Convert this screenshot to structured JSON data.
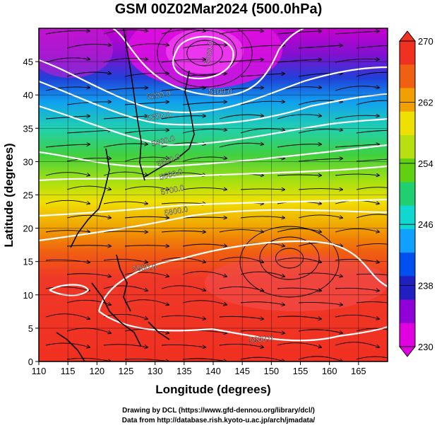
{
  "title": "GSM 00Z02Mar2024 (500.0hPa)",
  "x_axis": {
    "label": "Longitude (degrees)",
    "ticks": [
      "110",
      "115",
      "120",
      "125",
      "130",
      "135",
      "140",
      "145",
      "150",
      "155",
      "160",
      "165"
    ],
    "range": [
      110,
      170
    ]
  },
  "y_axis": {
    "label": "Latitude (degrees)",
    "ticks": [
      "0",
      "5",
      "10",
      "15",
      "20",
      "25",
      "30",
      "35",
      "40",
      "45"
    ],
    "range": [
      0,
      50
    ]
  },
  "colorbar": {
    "ticks": [
      "230",
      "238",
      "246",
      "254",
      "262",
      "270"
    ],
    "range": [
      230,
      270
    ],
    "colors": [
      "#e000e0",
      "#9000d8",
      "#2020c0",
      "#0050f0",
      "#10a0ff",
      "#10d8d0",
      "#20d070",
      "#60d010",
      "#b8e010",
      "#f0e000",
      "#f0a000",
      "#f06010",
      "#f03020"
    ]
  },
  "contours": [
    {
      "label": "5000.0"
    },
    {
      "label": "5100.0"
    },
    {
      "label": "5200.0"
    },
    {
      "label": "5300.0"
    },
    {
      "label": "5400.0"
    },
    {
      "label": "5500.0"
    },
    {
      "label": "5600.0"
    },
    {
      "label": "5700.0"
    },
    {
      "label": "5800.0"
    },
    {
      "label": "5900.0"
    },
    {
      "label": "5900.0"
    }
  ],
  "credits": {
    "line1": "Drawing by DCL (https://www.gfd-dennou.org/library/dcl/)",
    "line2": "Data from http://database.rish.kyoto-u.ac.jp/arch/jmadata/"
  }
}
